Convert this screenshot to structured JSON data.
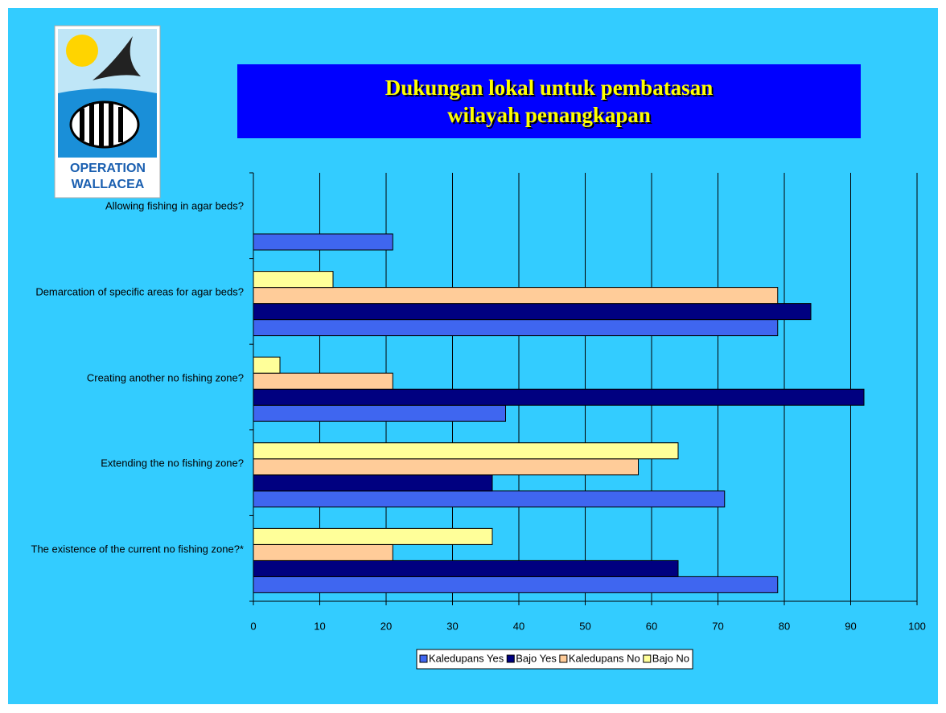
{
  "logo": {
    "line1": "OPERATION",
    "line2": "WALLACEA"
  },
  "chart_data": {
    "type": "hbar",
    "title": "Dukungan lokal untuk pembatasan wilayah penangkapan",
    "categories": [
      "Allowing fishing in agar beds?",
      "Demarcation of specific areas for agar beds?",
      "Creating another no fishing zone?",
      "Extending the no fishing zone?",
      "The existence of the current no fishing zone?*"
    ],
    "series": [
      {
        "name": "Kaledupans Yes",
        "color": "#3f66f0",
        "values": [
          21,
          79,
          38,
          71,
          79
        ]
      },
      {
        "name": "Bajo Yes",
        "color": "#000080",
        "values": [
          0,
          84,
          92,
          36,
          64
        ]
      },
      {
        "name": "Kaledupans No",
        "color": "#ffcc99",
        "values": [
          0,
          79,
          21,
          58,
          21
        ]
      },
      {
        "name": "Bajo No",
        "color": "#ffff99",
        "values": [
          0,
          12,
          4,
          64,
          36
        ]
      }
    ],
    "xlim": [
      0,
      100
    ],
    "xticks": [
      0,
      10,
      20,
      30,
      40,
      50,
      60,
      70,
      80,
      90,
      100
    ],
    "grid": true,
    "legend": "bottom"
  }
}
